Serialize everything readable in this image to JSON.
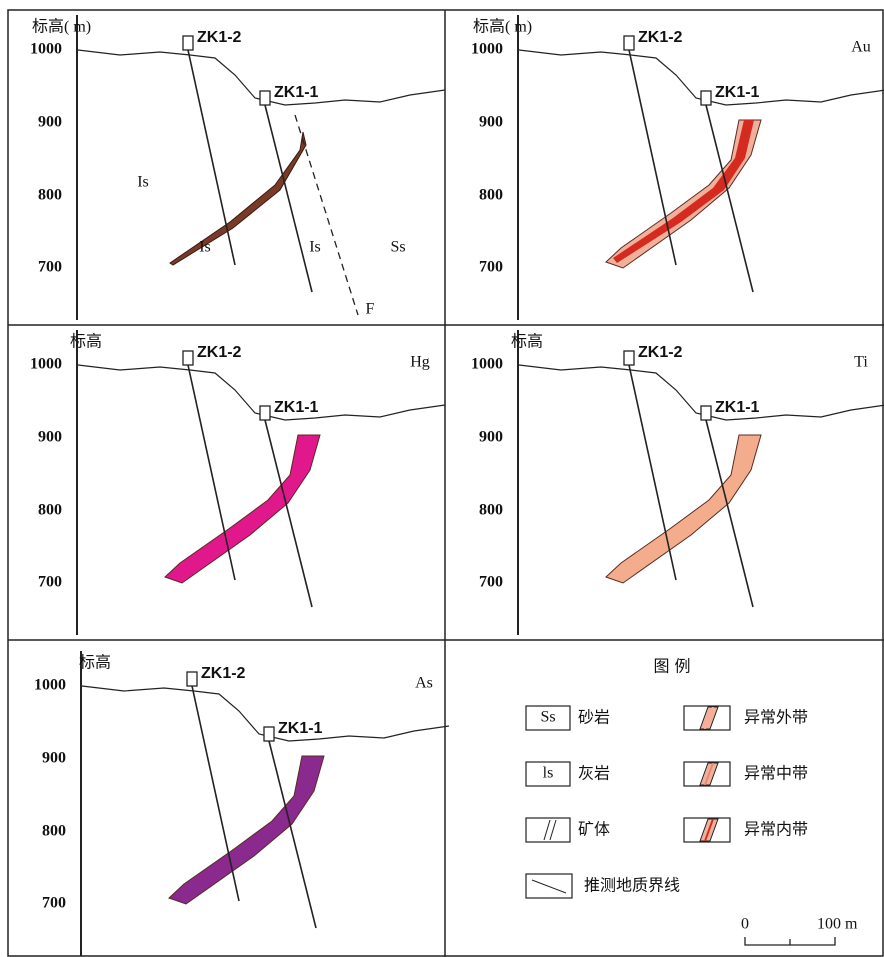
{
  "panels": [
    {
      "axis_label": "标高( m)",
      "ticks": [
        "1000",
        "900",
        "800",
        "700"
      ],
      "drills": [
        "ZK1-2",
        "ZK1-1"
      ],
      "labels": [
        "Is",
        "Is",
        "Is",
        "Ss",
        "F"
      ]
    },
    {
      "axis_label": "标高( m)",
      "ticks": [
        "1000",
        "900",
        "800",
        "700"
      ],
      "drills": [
        "ZK1-2",
        "ZK1-1"
      ],
      "element": "Au"
    },
    {
      "axis_label": "标高",
      "ticks": [
        "1000",
        "900",
        "800",
        "700"
      ],
      "drills": [
        "ZK1-2",
        "ZK1-1"
      ],
      "element": "Hg"
    },
    {
      "axis_label": "标高",
      "ticks": [
        "1000",
        "900",
        "800",
        "700"
      ],
      "drills": [
        "ZK1-2",
        "ZK1-1"
      ],
      "element": "Ti"
    },
    {
      "axis_label": "标高",
      "ticks": [
        "1000",
        "900",
        "800",
        "700"
      ],
      "drills": [
        "ZK1-2",
        "ZK1-1"
      ],
      "element": "As"
    }
  ],
  "legend": {
    "title": "图    例",
    "rock_items": [
      {
        "symbol": "Ss",
        "label": "砂岩"
      },
      {
        "symbol": "ls",
        "label": "灰岩"
      },
      {
        "label": "矿体"
      },
      {
        "label": "推测地质界线"
      }
    ],
    "zone_items": [
      {
        "label": "异常外带"
      },
      {
        "label": "异常中带"
      },
      {
        "label": "异常内带"
      }
    ],
    "scale": {
      "start": "0",
      "end": "100 m"
    }
  }
}
